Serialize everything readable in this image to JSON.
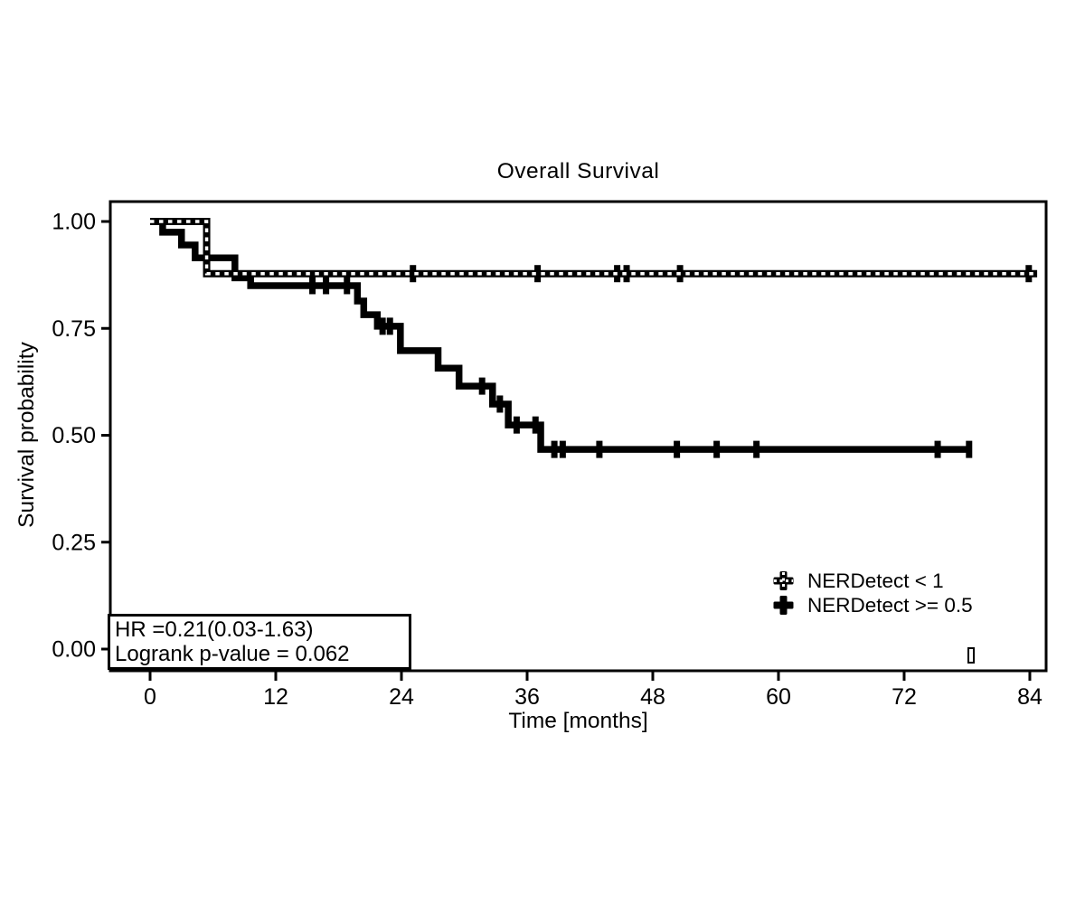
{
  "chart_data": {
    "type": "line",
    "subtype": "kaplan-meier-step-curve",
    "title": "Overall Survival",
    "xlabel": "Time [months]",
    "ylabel": "Survival probability",
    "xlim": [
      0,
      85.5
    ],
    "ylim": [
      0,
      1.05
    ],
    "x_ticks": [
      "0",
      "12",
      "24",
      "36",
      "48",
      "60",
      "72",
      "84"
    ],
    "x_tick_values": [
      0,
      12,
      24,
      36,
      48,
      60,
      72,
      84
    ],
    "y_ticks": [
      "0.00",
      "0.25",
      "0.50",
      "0.75",
      "1.00"
    ],
    "y_tick_values": [
      0,
      0.25,
      0.5,
      0.75,
      1.0
    ],
    "grid": false,
    "legend_position": "inside-bottom-right",
    "series": [
      {
        "name": "NERDetect < 1",
        "style": "dashed",
        "color": "#000000",
        "steps": [
          [
            0,
            1.0
          ],
          [
            5.4,
            0.878
          ]
        ],
        "end_time": 84.7,
        "censor_times": [
          25.1,
          37.0,
          44.6,
          45.5,
          50.6,
          83.9
        ]
      },
      {
        "name": "NERDetect >= 0.5",
        "style": "solid",
        "color": "#000000",
        "steps": [
          [
            0,
            1.0
          ],
          [
            1.2,
            0.975
          ],
          [
            3.0,
            0.945
          ],
          [
            4.3,
            0.915
          ],
          [
            8.1,
            0.868
          ],
          [
            9.6,
            0.85
          ],
          [
            19.8,
            0.814
          ],
          [
            20.4,
            0.782
          ],
          [
            21.7,
            0.755
          ],
          [
            23.9,
            0.698
          ],
          [
            27.5,
            0.657
          ],
          [
            29.5,
            0.615
          ],
          [
            32.7,
            0.573
          ],
          [
            34.2,
            0.524
          ],
          [
            37.3,
            0.467
          ]
        ],
        "end_time": 78.3,
        "censor_times": [
          15.5,
          16.8,
          18.8,
          22.2,
          22.9,
          31.7,
          33.4,
          35.0,
          36.8,
          38.6,
          39.4,
          42.9,
          50.3,
          54.1,
          57.9,
          75.2,
          78.2
        ]
      }
    ],
    "annotation": {
      "line1": "HR =0.21(0.03-1.63)",
      "line2": "Logrank p-value = 0.062"
    }
  }
}
